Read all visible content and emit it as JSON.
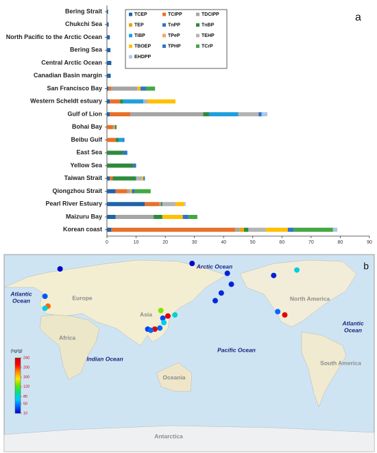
{
  "chart_data": [
    {
      "type": "bar",
      "orientation": "horizontal",
      "stacked": true,
      "panel_label": "a",
      "categories": [
        "Bering Strait",
        "Chukchi Sea",
        "North Pacific to the Arctic Ocean",
        "Bering Sea",
        "Central Arctic Ocean",
        "Canadian Basin margin",
        "San Francisco Bay",
        "Western Scheldt estuary",
        "Gulf of Lion",
        "Bohai Bay",
        "Beibu Gulf",
        "East Sea",
        "Yellow Sea",
        "Taiwan Strait",
        "Qiongzhou Strait",
        "Pearl River Estuary",
        "Maizuru Bay",
        "Korean coast"
      ],
      "series": [
        {
          "name": "TCEP",
          "color": "#1f62a8",
          "values": [
            0.4,
            0.6,
            1,
            1.2,
            1.5,
            1.3,
            0.5,
            1,
            1,
            0,
            0,
            0,
            0,
            1,
            3,
            13,
            3,
            1.5
          ]
        },
        {
          "name": "TCIPP",
          "color": "#e8702a",
          "values": [
            0,
            0,
            0,
            0,
            0,
            0,
            1,
            3.5,
            7,
            2,
            3,
            0,
            0,
            1,
            4,
            5,
            0,
            42.5
          ]
        },
        {
          "name": "TDCIPP",
          "color": "#a5a5a5",
          "values": [
            0,
            0,
            0,
            0,
            0,
            0,
            9,
            0,
            25,
            0.5,
            0,
            0,
            0,
            0,
            1,
            0.5,
            13,
            1.5
          ]
        },
        {
          "name": "TEP",
          "color": "#f0a30a",
          "values": [
            0,
            0,
            0,
            0,
            0,
            0,
            0,
            0,
            0,
            0.3,
            0,
            0,
            0,
            0,
            0,
            0,
            0,
            1.5
          ]
        },
        {
          "name": "TnPP",
          "color": "#3a6fc4",
          "values": [
            0,
            0,
            0,
            0,
            0,
            0,
            0,
            0,
            0,
            0,
            0,
            0,
            0,
            0,
            0,
            0,
            0,
            0
          ]
        },
        {
          "name": "TnBP",
          "color": "#2e8b3e",
          "values": [
            0,
            0,
            0,
            0,
            0,
            0,
            0,
            1,
            2,
            0.5,
            1,
            5.5,
            9,
            8,
            0,
            0.5,
            3,
            1.5
          ]
        },
        {
          "name": "TiBP",
          "color": "#1ea0dc",
          "values": [
            0,
            0,
            0,
            0,
            0,
            0,
            0,
            7,
            10,
            0,
            1.5,
            0,
            0,
            0,
            0,
            0,
            0,
            0
          ]
        },
        {
          "name": "TPeP",
          "color": "#f4a460",
          "values": [
            0,
            0,
            0,
            0,
            0,
            0,
            0,
            0,
            0,
            0,
            0,
            0,
            0,
            0,
            0,
            0,
            0,
            0
          ]
        },
        {
          "name": "TEHP",
          "color": "#b4b4b4",
          "values": [
            0,
            0,
            0,
            0,
            0,
            0,
            0,
            1.5,
            7,
            0,
            0,
            0,
            0,
            2,
            0,
            4.5,
            0,
            6
          ]
        },
        {
          "name": "TBOEP",
          "color": "#ffc000",
          "values": [
            0,
            0,
            0,
            0,
            0,
            0,
            1,
            9.5,
            0,
            0,
            0,
            0,
            0,
            0.5,
            0.5,
            3,
            7,
            7.5
          ]
        },
        {
          "name": "TPHP",
          "color": "#2f75c8",
          "values": [
            0,
            0,
            0,
            0,
            0,
            0,
            2,
            0,
            1,
            0,
            0.5,
            1.5,
            1,
            0.5,
            1,
            0,
            2,
            2
          ]
        },
        {
          "name": "TCrP",
          "color": "#43a843",
          "values": [
            0,
            0,
            0,
            0,
            0,
            0,
            3,
            0,
            0,
            0,
            0,
            0,
            0,
            0,
            5.5,
            0,
            3,
            13.5
          ]
        },
        {
          "name": "EHDPP",
          "color": "#a9c8ec",
          "values": [
            0,
            0,
            0,
            0,
            0,
            0,
            0,
            0,
            2,
            0,
            0,
            0,
            0,
            0,
            0,
            0.5,
            0,
            1.5
          ]
        }
      ],
      "xlim": [
        0,
        90
      ],
      "xticks": [
        0,
        10,
        20,
        30,
        40,
        50,
        60,
        70,
        80,
        90
      ]
    },
    {
      "type": "map",
      "panel_label": "b",
      "region_labels": [
        [
          "Arctic Ocean"
        ],
        [
          "Atlantic",
          "Ocean"
        ],
        [
          "Europe"
        ],
        [
          "Asia"
        ],
        [
          "Africa"
        ],
        [
          "Indian Ocean"
        ],
        [
          "Pacific Ocean"
        ],
        [
          "Oceania"
        ],
        [
          "North America"
        ],
        [
          "Atlantic",
          "Ocean"
        ],
        [
          "South America"
        ],
        [
          "Antarctica"
        ]
      ],
      "colorbar": {
        "label": "(ng/g)",
        "colors": [
          "#0000c8",
          "#0064ff",
          "#00c8ff",
          "#00e08c",
          "#64e600",
          "#ffe600",
          "#ff8c00",
          "#ff0000",
          "#c80000"
        ],
        "lim": [
          10,
          240
        ],
        "ticks": [
          240,
          200,
          160,
          120,
          80,
          50,
          10
        ]
      },
      "points": [
        {
          "lon": 16,
          "lat": 80,
          "value": 12
        },
        {
          "lon": 147,
          "lat": 85,
          "value": 12
        },
        {
          "lon": 182,
          "lat": 76,
          "value": 20
        },
        {
          "lon": 186,
          "lat": 66,
          "value": 20
        },
        {
          "lon": 176,
          "lat": 58,
          "value": 22
        },
        {
          "lon": 170,
          "lat": 51,
          "value": 22
        },
        {
          "lon": 228,
          "lat": 74,
          "value": 20
        },
        {
          "lon": 251,
          "lat": 79,
          "value": 75
        },
        {
          "lon": 1,
          "lat": 55,
          "value": 35
        },
        {
          "lon": 4,
          "lat": 46,
          "value": 190
        },
        {
          "lon": 1,
          "lat": 44,
          "value": 75
        },
        {
          "lon": 232,
          "lat": 41,
          "value": 40
        },
        {
          "lon": 239,
          "lat": 38,
          "value": 225
        },
        {
          "lon": 116,
          "lat": 42,
          "value": 130
        },
        {
          "lon": 118,
          "lat": 35,
          "value": 30
        },
        {
          "lon": 123,
          "lat": 37,
          "value": 225
        },
        {
          "lon": 130,
          "lat": 38,
          "value": 80
        },
        {
          "lon": 119,
          "lat": 31,
          "value": 70
        },
        {
          "lon": 115,
          "lat": 26,
          "value": 40
        },
        {
          "lon": 110,
          "lat": 25,
          "value": 225
        },
        {
          "lon": 103,
          "lat": 25,
          "value": 30
        },
        {
          "lon": 106,
          "lat": 24,
          "value": 40
        }
      ]
    }
  ]
}
